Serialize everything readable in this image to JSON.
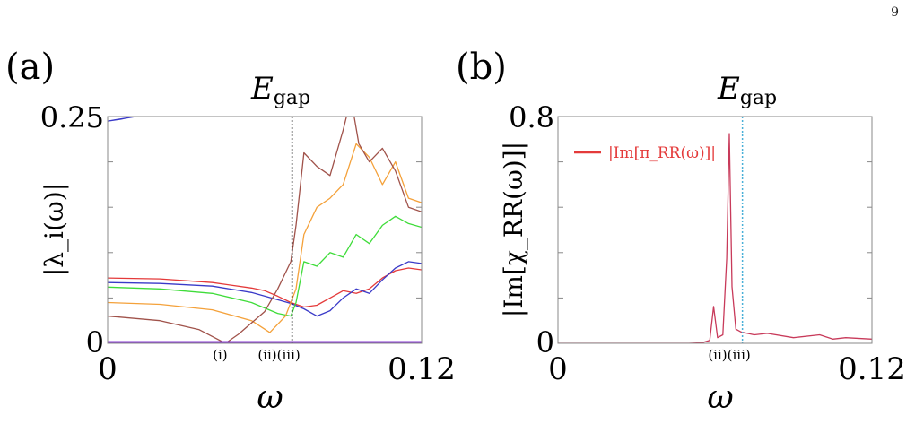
{
  "page_number": "9",
  "colors": {
    "brown": "#a0524a",
    "orange": "#f4a13a",
    "green": "#3fdc3a",
    "blue": "#3a3ac8",
    "red": "#e43a3a",
    "purple": "#8a3ad6",
    "pink": "#c83a5a",
    "dotted_black": "#222222",
    "dotted_cyan": "#4ab0d8"
  },
  "chart_data": [
    {
      "type": "line",
      "panel_label": "(a)",
      "annotation_top": "E",
      "annotation_top_sub": "gap",
      "ylabel": "|λ_i(ω)|",
      "xlabel": "ω",
      "xlim": [
        0,
        0.12
      ],
      "ylim": [
        0,
        0.25
      ],
      "x_tick_labels": [
        "0",
        "0.12"
      ],
      "y_tick_labels": [
        "0",
        "0.25"
      ],
      "vertical_marker_x": 0.0705,
      "point_labels": [
        {
          "text": "(i)",
          "x": 0.043
        },
        {
          "text": "(ii)(iii)",
          "x": 0.0655
        }
      ],
      "series": [
        {
          "color_key": "blue",
          "points": [
            [
              0,
              0.245
            ],
            [
              0.005,
              0.247
            ],
            [
              0.01,
              0.25
            ],
            [
              0.015,
              0.252
            ],
            [
              0.0,
              0.245
            ]
          ],
          "segment": "top"
        },
        {
          "color_key": "red",
          "points": [
            [
              0,
              0.072
            ],
            [
              0.02,
              0.071
            ],
            [
              0.04,
              0.067
            ],
            [
              0.055,
              0.061
            ],
            [
              0.06,
              0.058
            ],
            [
              0.065,
              0.052
            ],
            [
              0.07,
              0.045
            ],
            [
              0.075,
              0.04
            ],
            [
              0.08,
              0.042
            ],
            [
              0.085,
              0.05
            ],
            [
              0.09,
              0.058
            ],
            [
              0.095,
              0.055
            ],
            [
              0.1,
              0.06
            ],
            [
              0.105,
              0.072
            ],
            [
              0.11,
              0.08
            ],
            [
              0.115,
              0.083
            ],
            [
              0.12,
              0.081
            ]
          ]
        },
        {
          "color_key": "blue",
          "points": [
            [
              0,
              0.067
            ],
            [
              0.02,
              0.066
            ],
            [
              0.04,
              0.063
            ],
            [
              0.055,
              0.056
            ],
            [
              0.065,
              0.048
            ],
            [
              0.07,
              0.044
            ],
            [
              0.075,
              0.038
            ],
            [
              0.08,
              0.03
            ],
            [
              0.085,
              0.036
            ],
            [
              0.09,
              0.05
            ],
            [
              0.095,
              0.06
            ],
            [
              0.1,
              0.055
            ],
            [
              0.105,
              0.07
            ],
            [
              0.11,
              0.083
            ],
            [
              0.115,
              0.09
            ],
            [
              0.12,
              0.088
            ]
          ]
        },
        {
          "color_key": "green",
          "points": [
            [
              0,
              0.062
            ],
            [
              0.02,
              0.06
            ],
            [
              0.04,
              0.055
            ],
            [
              0.055,
              0.045
            ],
            [
              0.065,
              0.033
            ],
            [
              0.07,
              0.03
            ],
            [
              0.072,
              0.045
            ],
            [
              0.075,
              0.09
            ],
            [
              0.08,
              0.085
            ],
            [
              0.085,
              0.1
            ],
            [
              0.09,
              0.095
            ],
            [
              0.095,
              0.12
            ],
            [
              0.1,
              0.11
            ],
            [
              0.105,
              0.13
            ],
            [
              0.11,
              0.14
            ],
            [
              0.115,
              0.132
            ],
            [
              0.12,
              0.128
            ]
          ]
        },
        {
          "color_key": "orange",
          "points": [
            [
              0,
              0.045
            ],
            [
              0.02,
              0.043
            ],
            [
              0.04,
              0.037
            ],
            [
              0.055,
              0.025
            ],
            [
              0.062,
              0.012
            ],
            [
              0.068,
              0.03
            ],
            [
              0.072,
              0.06
            ],
            [
              0.075,
              0.12
            ],
            [
              0.08,
              0.15
            ],
            [
              0.085,
              0.16
            ],
            [
              0.09,
              0.175
            ],
            [
              0.095,
              0.22
            ],
            [
              0.1,
              0.205
            ],
            [
              0.105,
              0.175
            ],
            [
              0.11,
              0.2
            ],
            [
              0.115,
              0.16
            ],
            [
              0.12,
              0.155
            ]
          ]
        },
        {
          "color_key": "brown",
          "points": [
            [
              0,
              0.03
            ],
            [
              0.02,
              0.025
            ],
            [
              0.035,
              0.015
            ],
            [
              0.045,
              0.0
            ],
            [
              0.05,
              0.01
            ],
            [
              0.06,
              0.035
            ],
            [
              0.065,
              0.06
            ],
            [
              0.07,
              0.09
            ],
            [
              0.072,
              0.13
            ],
            [
              0.075,
              0.21
            ],
            [
              0.08,
              0.195
            ],
            [
              0.085,
              0.185
            ],
            [
              0.09,
              0.235
            ],
            [
              0.093,
              0.27
            ],
            [
              0.096,
              0.22
            ],
            [
              0.1,
              0.2
            ],
            [
              0.105,
              0.215
            ],
            [
              0.11,
              0.19
            ],
            [
              0.115,
              0.15
            ],
            [
              0.12,
              0.145
            ]
          ]
        },
        {
          "color_key": "purple",
          "points": [
            [
              0,
              0.001
            ],
            [
              0.12,
              0.001
            ]
          ]
        }
      ]
    },
    {
      "type": "line",
      "panel_label": "(b)",
      "annotation_top": "E",
      "annotation_top_sub": "gap",
      "ylabel": "|Im[χ_RR(ω)]|",
      "xlabel": "ω",
      "xlim": [
        0,
        0.12
      ],
      "ylim": [
        0,
        0.8
      ],
      "x_tick_labels": [
        "0",
        "0.12"
      ],
      "y_tick_labels": [
        "0",
        "0.8"
      ],
      "vertical_marker_x": 0.0705,
      "point_labels": [
        {
          "text": "(ii)(iii)",
          "x": 0.0655
        }
      ],
      "legend_text": "|Im[π_RR(ω)]|",
      "legend_position": "top-left",
      "series": [
        {
          "color_key": "pink",
          "name": "|Im[π_RR(ω)]|",
          "points": [
            [
              0,
              0.0
            ],
            [
              0.05,
              0.0
            ],
            [
              0.055,
              0.002
            ],
            [
              0.058,
              0.01
            ],
            [
              0.0595,
              0.13
            ],
            [
              0.061,
              0.02
            ],
            [
              0.063,
              0.03
            ],
            [
              0.0645,
              0.3
            ],
            [
              0.0655,
              0.74
            ],
            [
              0.0665,
              0.2
            ],
            [
              0.068,
              0.05
            ],
            [
              0.07,
              0.04
            ],
            [
              0.075,
              0.03
            ],
            [
              0.08,
              0.035
            ],
            [
              0.09,
              0.02
            ],
            [
              0.1,
              0.03
            ],
            [
              0.105,
              0.015
            ],
            [
              0.11,
              0.02
            ],
            [
              0.12,
              0.015
            ]
          ]
        }
      ]
    }
  ]
}
